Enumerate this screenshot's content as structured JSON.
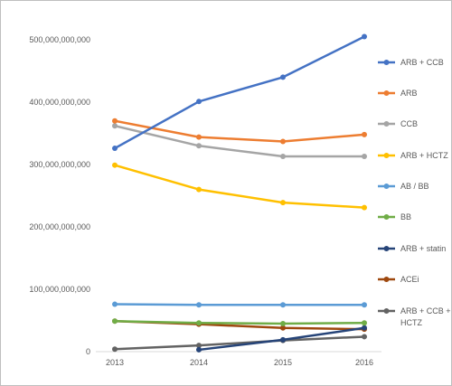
{
  "chart_data": {
    "type": "line",
    "categories": [
      "2013",
      "2014",
      "2015",
      "2016"
    ],
    "ylim": [
      0,
      500000000000
    ],
    "y_ticks": [
      "0",
      "100,000,000,000",
      "200,000,000,000",
      "300,000,000,000",
      "400,000,000,000",
      "500,000,000,000"
    ],
    "y_tick_values": [
      0,
      100000000000,
      200000000000,
      300000000000,
      400000000000,
      500000000000
    ],
    "grid": false,
    "legend_position": "right",
    "series": [
      {
        "name": "ARB + CCB",
        "color": "#4472c4",
        "values": [
          326000000000,
          401000000000,
          440000000000,
          505000000000
        ]
      },
      {
        "name": "ARB",
        "color": "#ed7d31",
        "values": [
          370000000000,
          344000000000,
          337000000000,
          348000000000
        ]
      },
      {
        "name": "CCB",
        "color": "#a5a5a5",
        "values": [
          362000000000,
          330000000000,
          313000000000,
          313000000000
        ]
      },
      {
        "name": "ARB + HCTZ",
        "color": "#ffc000",
        "values": [
          299000000000,
          260000000000,
          239000000000,
          231000000000
        ]
      },
      {
        "name": "AB / BB",
        "color": "#5b9bd5",
        "values": [
          76000000000,
          75000000000,
          75000000000,
          75000000000
        ]
      },
      {
        "name": "BB",
        "color": "#70ad47",
        "values": [
          49000000000,
          46000000000,
          45000000000,
          46000000000
        ]
      },
      {
        "name": "ARB + statin",
        "color": "#264478",
        "values": [
          null,
          3000000000,
          19000000000,
          38000000000
        ]
      },
      {
        "name": "ACEi",
        "color": "#9e480e",
        "values": [
          49000000000,
          44000000000,
          38000000000,
          36000000000
        ]
      },
      {
        "name": "ARB + CCB + HCTZ",
        "color": "#636363",
        "values": [
          4000000000,
          10000000000,
          18000000000,
          24000000000
        ]
      }
    ]
  }
}
